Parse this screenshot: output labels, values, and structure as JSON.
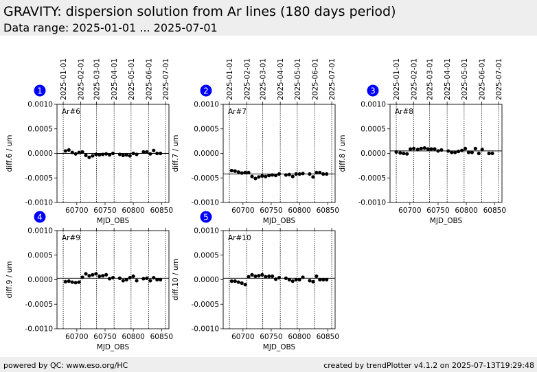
{
  "header": {
    "title": "GRAVITY: dispersion solution from Ar lines (180 days period)",
    "subtitle": "Data range: 2025-01-01 ... 2025-07-01"
  },
  "footer": {
    "left": "powered by QC: www.eso.org/HC",
    "right": "created by trendPlotter v4.1.2 on 2025-07-13T19:29:48"
  },
  "colors": {
    "badge": "#0000ff",
    "point": "#000000"
  },
  "chart_data": [
    {
      "type": "scatter",
      "panel": "1",
      "label": "Ar#6",
      "ylabel": "diff.6 / um",
      "xlabel": "MJD_OBS",
      "xlim": [
        60665,
        60863
      ],
      "ylim": [
        -0.001,
        0.001
      ],
      "reference": 0.0,
      "xticks": [
        60700,
        60750,
        60800,
        60850
      ],
      "xtick_labels": [
        "60700",
        "60750",
        "60800",
        "60850"
      ],
      "yticks": [
        0.001,
        0.0005,
        0.0,
        -0.0005,
        -0.001
      ],
      "ytick_labels": [
        "0.0010",
        "0.0005",
        "0.0000",
        "-0.0005",
        "-0.0010"
      ],
      "date_ticks": [
        60676,
        60707,
        60735,
        60766,
        60796,
        60827,
        60857
      ],
      "date_labels": [
        "2025-01-01",
        "2025-02-01",
        "2025-03-01",
        "2025-04-01",
        "2025-05-01",
        "2025-06-01",
        "2025-07-01"
      ],
      "show_date_labels": true,
      "x": [
        60680,
        60686,
        60692,
        60698,
        60704,
        60710,
        60716,
        60722,
        60728,
        60734,
        60740,
        60746,
        60752,
        60758,
        60764,
        60776,
        60782,
        60788,
        60794,
        60800,
        60806,
        60818,
        60824,
        60830,
        60836,
        60842,
        60848
      ],
      "y": [
        5e-05,
        7e-05,
        2e-05,
        -1e-05,
        2e-05,
        3e-05,
        -4e-05,
        -8e-05,
        -5e-05,
        -2e-05,
        -3e-05,
        -2e-05,
        -1e-05,
        -3e-05,
        0.0,
        -2e-05,
        -4e-05,
        -3e-05,
        -5e-05,
        0.0,
        -2e-05,
        3e-05,
        3e-05,
        -1e-05,
        6e-05,
        0.0,
        0.0
      ]
    },
    {
      "type": "scatter",
      "panel": "2",
      "label": "Ar#7",
      "ylabel": "diff.7 / um",
      "xlabel": "MJD_OBS",
      "xlim": [
        60665,
        60863
      ],
      "ylim": [
        -0.001,
        0.001
      ],
      "reference": -0.00042,
      "xticks": [
        60700,
        60750,
        60800,
        60850
      ],
      "xtick_labels": [
        "60700",
        "60750",
        "60800",
        "60850"
      ],
      "yticks": [
        0.001,
        0.0005,
        0.0,
        -0.0005,
        -0.001
      ],
      "ytick_labels": [
        "0.0010",
        "0.0005",
        "0.0000",
        "-0.0005",
        "-0.0010"
      ],
      "date_ticks": [
        60676,
        60707,
        60735,
        60766,
        60796,
        60827,
        60857
      ],
      "date_labels": [
        "2025-01-01",
        "2025-02-01",
        "2025-03-01",
        "2025-04-01",
        "2025-05-01",
        "2025-06-01",
        "2025-07-01"
      ],
      "show_date_labels": true,
      "x": [
        60680,
        60686,
        60692,
        60698,
        60704,
        60710,
        60716,
        60722,
        60728,
        60734,
        60740,
        60746,
        60752,
        60758,
        60764,
        60776,
        60782,
        60788,
        60794,
        60800,
        60806,
        60818,
        60824,
        60830,
        60836,
        60842,
        60848
      ],
      "y": [
        -0.00035,
        -0.00036,
        -0.00038,
        -0.0004,
        -0.00039,
        -0.00039,
        -0.00047,
        -0.00051,
        -0.00048,
        -0.00046,
        -0.00047,
        -0.00045,
        -0.00044,
        -0.00045,
        -0.00042,
        -0.00044,
        -0.00043,
        -0.00047,
        -0.00042,
        -0.00042,
        -0.00041,
        -0.00042,
        -0.00048,
        -0.00039,
        -0.00039,
        -0.00042,
        -0.00042
      ]
    },
    {
      "type": "scatter",
      "panel": "3",
      "label": "Ar#8",
      "ylabel": "diff.8 / um",
      "xlabel": "MJD_OBS",
      "xlim": [
        60665,
        60863
      ],
      "ylim": [
        -0.001,
        0.001
      ],
      "reference": 5e-05,
      "xticks": [
        60700,
        60750,
        60800,
        60850
      ],
      "xtick_labels": [
        "60700",
        "60750",
        "60800",
        "60850"
      ],
      "yticks": [
        0.001,
        0.0005,
        0.0,
        -0.0005,
        -0.001
      ],
      "ytick_labels": [
        "0.0010",
        "0.0005",
        "0.0000",
        "-0.0005",
        "-0.0010"
      ],
      "date_ticks": [
        60676,
        60707,
        60735,
        60766,
        60796,
        60827,
        60857
      ],
      "date_labels": [
        "2025-01-01",
        "2025-02-01",
        "2025-03-01",
        "2025-04-01",
        "2025-05-01",
        "2025-06-01",
        "2025-07-01"
      ],
      "show_date_labels": true,
      "x": [
        60676,
        60683,
        60689,
        60695,
        60701,
        60707,
        60714,
        60720,
        60726,
        60732,
        60738,
        60744,
        60750,
        60756,
        60768,
        60774,
        60780,
        60786,
        60792,
        60798,
        60804,
        60810,
        60816,
        60822,
        60828,
        60840,
        60846
      ],
      "y": [
        3e-05,
        1e-05,
        0.0,
        -1e-05,
        9e-05,
        0.0001,
        8e-05,
        0.0001,
        0.00011,
        9e-05,
        9e-05,
        9e-05,
        5e-05,
        7e-05,
        5e-05,
        2e-05,
        2e-05,
        4e-05,
        6e-05,
        0.0001,
        2e-05,
        2e-05,
        0.0001,
        0.0,
        8e-05,
        0.0,
        0.0
      ]
    },
    {
      "type": "scatter",
      "panel": "4",
      "label": "Ar#9",
      "ylabel": "diff.9 / um",
      "xlabel": "MJD_OBS",
      "xlim": [
        60665,
        60863
      ],
      "ylim": [
        -0.001,
        0.001
      ],
      "reference": 3e-05,
      "xticks": [
        60700,
        60750,
        60800,
        60850
      ],
      "xtick_labels": [
        "60700",
        "60750",
        "60800",
        "60850"
      ],
      "yticks": [
        0.001,
        0.0005,
        0.0,
        -0.0005,
        -0.001
      ],
      "ytick_labels": [
        "0.0010",
        "0.0005",
        "0.0000",
        "-0.0005",
        "-0.0010"
      ],
      "date_ticks": [
        60676,
        60707,
        60735,
        60766,
        60796,
        60827,
        60857
      ],
      "date_labels": [
        "2025-01-01",
        "2025-02-01",
        "2025-03-01",
        "2025-04-01",
        "2025-05-01",
        "2025-06-01",
        "2025-07-01"
      ],
      "show_date_labels": false,
      "x": [
        60680,
        60686,
        60692,
        60698,
        60704,
        60710,
        60716,
        60722,
        60728,
        60734,
        60740,
        60746,
        60752,
        60758,
        60764,
        60776,
        60782,
        60788,
        60794,
        60800,
        60806,
        60818,
        60824,
        60830,
        60836,
        60842,
        60848
      ],
      "y": [
        -4e-05,
        -3e-05,
        -5e-05,
        -6e-05,
        -5e-05,
        5e-05,
        0.00012,
        8e-05,
        0.0001,
        0.00012,
        7e-05,
        8e-05,
        0.0001,
        2e-05,
        4e-05,
        3e-05,
        -2e-05,
        0.0,
        4e-05,
        7e-05,
        -2e-05,
        2e-05,
        3e-05,
        -2e-05,
        4e-05,
        0.0,
        0.0
      ]
    },
    {
      "type": "scatter",
      "panel": "5",
      "label": "Ar#10",
      "ylabel": "diff.10 / um",
      "xlabel": "MJD_OBS",
      "xlim": [
        60665,
        60863
      ],
      "ylim": [
        -0.001,
        0.001
      ],
      "reference": 3e-05,
      "xticks": [
        60700,
        60750,
        60800,
        60850
      ],
      "xtick_labels": [
        "60700",
        "60750",
        "60800",
        "60850"
      ],
      "yticks": [
        0.001,
        0.0005,
        0.0,
        -0.0005,
        -0.001
      ],
      "ytick_labels": [
        "0.0010",
        "0.0005",
        "0.0000",
        "-0.0005",
        "-0.0010"
      ],
      "date_ticks": [
        60676,
        60707,
        60735,
        60766,
        60796,
        60827,
        60857
      ],
      "date_labels": [
        "2025-01-01",
        "2025-02-01",
        "2025-03-01",
        "2025-04-01",
        "2025-05-01",
        "2025-06-01",
        "2025-07-01"
      ],
      "show_date_labels": false,
      "x": [
        60680,
        60686,
        60692,
        60698,
        60704,
        60710,
        60716,
        60722,
        60728,
        60734,
        60740,
        60746,
        60752,
        60758,
        60764,
        60776,
        60782,
        60788,
        60794,
        60800,
        60806,
        60818,
        60824,
        60830,
        60836,
        60842,
        60848
      ],
      "y": [
        -3e-05,
        -3e-05,
        -5e-05,
        -7e-05,
        -0.0001,
        6e-05,
        0.0001,
        7e-05,
        8e-05,
        0.0001,
        6e-05,
        7e-05,
        7e-05,
        1e-05,
        4e-05,
        3e-05,
        0.0,
        -3e-05,
        0.0,
        0.0,
        5e-05,
        -2e-05,
        -4e-05,
        7e-05,
        0.0,
        0.0,
        0.0
      ]
    }
  ]
}
